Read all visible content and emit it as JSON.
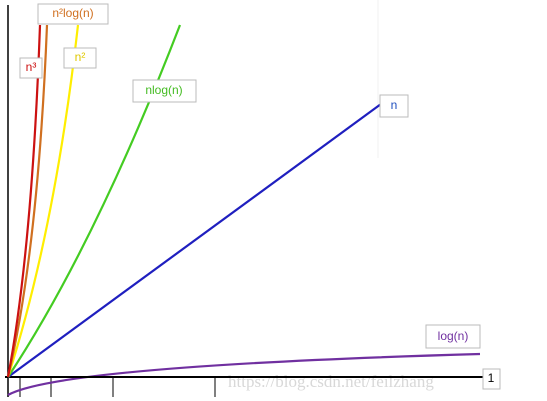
{
  "labels": {
    "n3": "n³",
    "n2logn": "n²log(n)",
    "n2": "n²",
    "nlogn": "nlog(n)",
    "n": "n",
    "logn": "log(n)",
    "one": "1"
  },
  "watermark": "https://blog.csdn.net/feilzhang"
}
